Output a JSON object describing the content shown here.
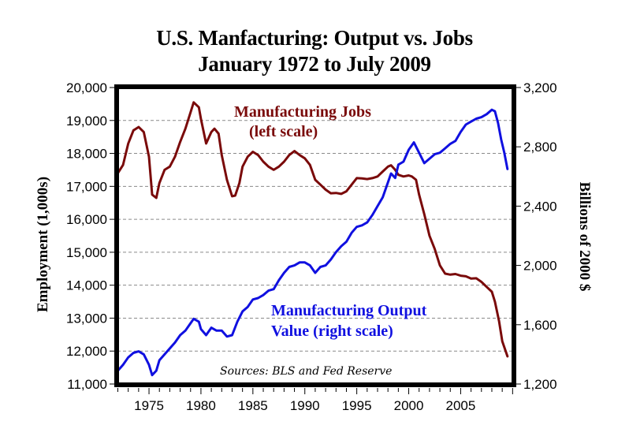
{
  "chart_data": {
    "type": "line",
    "title": "U.S. Manfacturing: Output vs. Jobs",
    "subtitle": "January 1972 to July 2009",
    "xlabel": "",
    "ylabel_left": "Employment (1,000s)",
    "ylabel_right": "Billions of 2000 $",
    "xlim": [
      1972,
      2010.3
    ],
    "ylim_left": [
      11000,
      20000
    ],
    "ylim_right": [
      1200,
      3200
    ],
    "x_ticks": [
      "1975",
      "1980",
      "1985",
      "1990",
      "1995",
      "2000",
      "2005"
    ],
    "x_tick_values": [
      1975,
      1980,
      1985,
      1990,
      1995,
      2000,
      2005
    ],
    "y_ticks_left": [
      "20,000",
      "19,000",
      "18,000",
      "17,000",
      "16,000",
      "15,000",
      "14,000",
      "13,000",
      "12,000",
      "11,000"
    ],
    "y_tick_values_left": [
      20000,
      19000,
      18000,
      17000,
      16000,
      15000,
      14000,
      13000,
      12000,
      11000
    ],
    "y_ticks_right": [
      "3,200",
      "2,800",
      "2,400",
      "2,000",
      "1,600",
      "1,200"
    ],
    "y_tick_values_right": [
      3200,
      2800,
      2400,
      2000,
      1600,
      1200
    ],
    "grid": true,
    "series": [
      {
        "name": "Manufacturing Jobs",
        "axis": "left",
        "color": "#7a0a0a",
        "x": [
          1972,
          1972.5,
          1973,
          1973.5,
          1974,
          1974.5,
          1975,
          1975.3,
          1975.7,
          1976,
          1976.5,
          1977,
          1977.5,
          1978,
          1978.5,
          1979,
          1979.3,
          1979.8,
          1980,
          1980.5,
          1981,
          1981.3,
          1981.7,
          1982,
          1982.5,
          1983,
          1983.3,
          1983.7,
          1984,
          1984.5,
          1985,
          1985.5,
          1986,
          1986.5,
          1987,
          1987.5,
          1988,
          1988.5,
          1989,
          1989.5,
          1990,
          1990.5,
          1991,
          1991.5,
          1992,
          1992.5,
          1993,
          1993.5,
          1994,
          1994.5,
          1995,
          1995.5,
          1996,
          1996.5,
          1997,
          1997.5,
          1998,
          1998.3,
          1998.7,
          1999,
          1999.5,
          2000,
          2000.3,
          2000.7,
          2001,
          2001.5,
          2002,
          2002.5,
          2003,
          2003.5,
          2004,
          2004.5,
          2005,
          2005.5,
          2006,
          2006.5,
          2007,
          2007.5,
          2008,
          2008.3,
          2008.7,
          2009,
          2009.5
        ],
        "values": [
          17400,
          17650,
          18300,
          18700,
          18800,
          18650,
          17900,
          16750,
          16650,
          17100,
          17500,
          17600,
          17900,
          18350,
          18750,
          19250,
          19550,
          19400,
          19050,
          18300,
          18650,
          18750,
          18600,
          17950,
          17200,
          16700,
          16720,
          17100,
          17600,
          17900,
          18050,
          17950,
          17750,
          17600,
          17500,
          17600,
          17750,
          17950,
          18070,
          17950,
          17850,
          17650,
          17200,
          17050,
          16900,
          16790,
          16800,
          16770,
          16850,
          17050,
          17250,
          17240,
          17220,
          17250,
          17300,
          17450,
          17600,
          17640,
          17500,
          17350,
          17300,
          17330,
          17300,
          17200,
          16750,
          16150,
          15500,
          15100,
          14600,
          14350,
          14320,
          14340,
          14290,
          14270,
          14200,
          14210,
          14100,
          13950,
          13800,
          13500,
          12900,
          12300,
          11840
        ]
      },
      {
        "name": "Manufacturing Output Value",
        "axis": "right",
        "color": "#1010e0",
        "x": [
          1972,
          1972.5,
          1973,
          1973.5,
          1974,
          1974.5,
          1975,
          1975.3,
          1975.7,
          1976,
          1976.5,
          1977,
          1977.5,
          1978,
          1978.5,
          1979,
          1979.3,
          1979.8,
          1980,
          1980.5,
          1981,
          1981.5,
          1982,
          1982.5,
          1983,
          1983.5,
          1984,
          1984.5,
          1985,
          1985.5,
          1986,
          1986.5,
          1987,
          1987.5,
          1988,
          1988.5,
          1989,
          1989.5,
          1990,
          1990.5,
          1991,
          1991.5,
          1992,
          1992.5,
          1993,
          1993.5,
          1994,
          1994.5,
          1995,
          1995.5,
          1996,
          1996.5,
          1997,
          1997.5,
          1998,
          1998.3,
          1998.7,
          1999,
          1999.5,
          2000,
          2000.5,
          2001,
          2001.5,
          2002,
          2002.5,
          2003,
          2003.5,
          2004,
          2004.5,
          2005,
          2005.5,
          2006,
          2006.5,
          2007,
          2007.5,
          2008,
          2008.3,
          2008.6,
          2008.9,
          2009.2,
          2009.5
        ],
        "values": [
          1290,
          1330,
          1380,
          1410,
          1420,
          1400,
          1330,
          1260,
          1290,
          1360,
          1400,
          1440,
          1480,
          1530,
          1560,
          1610,
          1640,
          1620,
          1570,
          1530,
          1580,
          1560,
          1560,
          1520,
          1530,
          1620,
          1690,
          1720,
          1770,
          1780,
          1800,
          1830,
          1840,
          1900,
          1950,
          1990,
          2000,
          2020,
          2020,
          2000,
          1950,
          1990,
          2000,
          2040,
          2090,
          2130,
          2160,
          2220,
          2260,
          2270,
          2290,
          2340,
          2400,
          2460,
          2560,
          2620,
          2590,
          2680,
          2700,
          2780,
          2830,
          2760,
          2690,
          2720,
          2750,
          2760,
          2790,
          2820,
          2840,
          2900,
          2950,
          2970,
          2990,
          3000,
          3020,
          3050,
          3040,
          2960,
          2850,
          2760,
          2650
        ]
      }
    ],
    "annotations": [
      {
        "text": "Manufacturing Jobs",
        "color": "#7a0a0a"
      },
      {
        "text": "(left scale)",
        "color": "#7a0a0a"
      },
      {
        "text": "Manufacturing Output",
        "color": "#1010e0"
      },
      {
        "text": "Value (right scale)",
        "color": "#1010e0"
      },
      {
        "text": "Sources: BLS and Fed Reserve",
        "color": "#000000"
      }
    ],
    "legend": "none"
  }
}
